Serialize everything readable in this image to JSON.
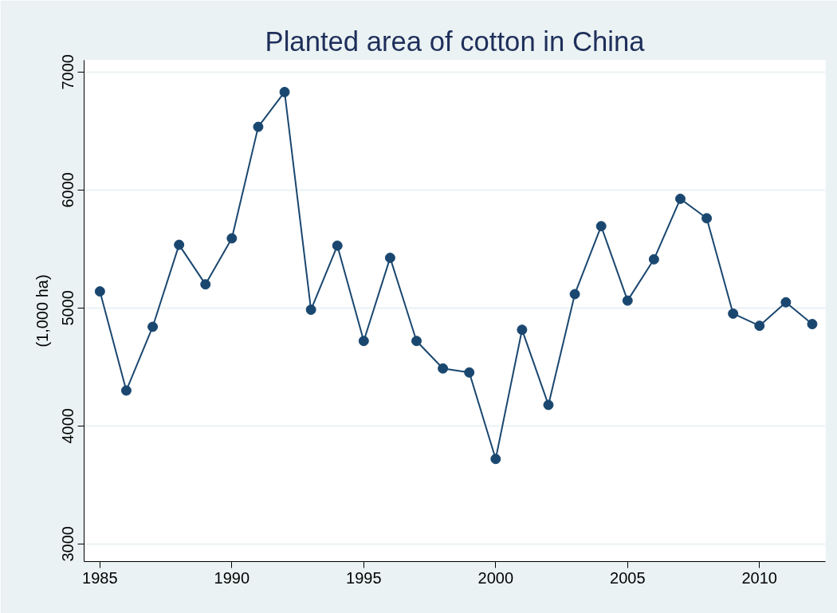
{
  "chart_data": {
    "type": "line",
    "title": "Planted area of cotton in China",
    "ylabel": "(1,000 ha)",
    "x": [
      1985,
      1986,
      1987,
      1988,
      1989,
      1990,
      1991,
      1992,
      1993,
      1994,
      1995,
      1996,
      1997,
      1998,
      1999,
      2000,
      2001,
      2002,
      2003,
      2004,
      2005,
      2006,
      2007,
      2008,
      2009,
      2010,
      2011,
      2012
    ],
    "series": [
      {
        "color": "#1a476f",
        "values": [
          5140,
          4300,
          4840,
          5535,
          5200,
          5590,
          6535,
          6830,
          4985,
          5528,
          4720,
          5425,
          4720,
          4487,
          4453,
          3720,
          4815,
          4178,
          5117,
          5693,
          5062,
          5412,
          5925,
          5760,
          4952,
          4849,
          5048,
          4863
        ]
      }
    ],
    "xlim": [
      1984.4,
      2012.5
    ],
    "xticks": [
      1985,
      1990,
      1995,
      2000,
      2005,
      2010
    ],
    "ylim": [
      2850,
      7100
    ],
    "yticks": [
      3000,
      4000,
      5000,
      6000,
      7000
    ],
    "grid": "y",
    "marker": "circle",
    "line_style": "solid"
  }
}
